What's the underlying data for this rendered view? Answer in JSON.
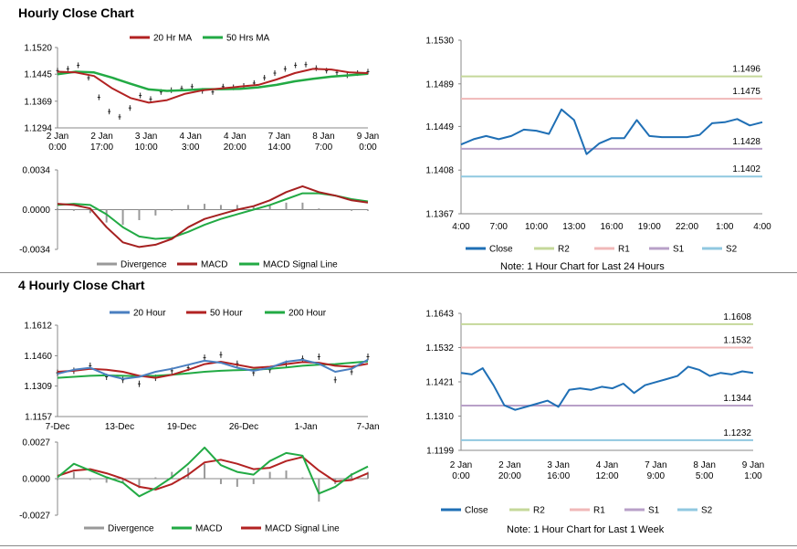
{
  "sections": {
    "hourly_title": "Hourly Close Chart",
    "four_hourly_title": "4 Hourly Close Chart"
  },
  "colors": {
    "ma20": "#b22222",
    "ma50": "#22aa44",
    "close": "#1f6fb5",
    "r2": "#c5d89a",
    "r1": "#f0b8b8",
    "s1": "#b8a0c8",
    "s2": "#90c8e0",
    "divergence": "#999999",
    "macd_hourly": "#a52020",
    "signal_hourly": "#22aa44",
    "macd_4h": "#22aa44",
    "signal_4h": "#b22222",
    "ma200": "#22aa44",
    "ma20_4h": "#4a7fc0"
  },
  "chart_data": [
    {
      "id": "hourly_price",
      "type": "line",
      "ylim": [
        1.1294,
        1.152
      ],
      "yticks": [
        "1.1520",
        "1.1445",
        "1.1369",
        "1.1294"
      ],
      "xticks": [
        [
          "2 Jan",
          "0:00"
        ],
        [
          "2 Jan",
          "17:00"
        ],
        [
          "3 Jan",
          "10:00"
        ],
        [
          "4 Jan",
          "3:00"
        ],
        [
          "4 Jan",
          "20:00"
        ],
        [
          "7 Jan",
          "14:00"
        ],
        [
          "8 Jan",
          "7:00"
        ],
        [
          "9 Jan",
          "0:00"
        ]
      ],
      "series": [
        {
          "name": "20 Hr MA",
          "values": [
            1.1452,
            1.145,
            1.144,
            1.1405,
            1.1378,
            1.1365,
            1.1372,
            1.139,
            1.14,
            1.1405,
            1.141,
            1.1415,
            1.143,
            1.1448,
            1.146,
            1.1458,
            1.145,
            1.1448
          ]
        },
        {
          "name": "50 Hrs MA",
          "values": [
            1.1445,
            1.1452,
            1.145,
            1.1435,
            1.1418,
            1.1402,
            1.1398,
            1.14,
            1.1403,
            1.1403,
            1.1404,
            1.1408,
            1.1415,
            1.1425,
            1.1432,
            1.1438,
            1.1442,
            1.1446
          ]
        }
      ],
      "candles": [
        1.1455,
        1.146,
        1.147,
        1.1435,
        1.138,
        1.134,
        1.1325,
        1.135,
        1.1385,
        1.1375,
        1.1395,
        1.14,
        1.1405,
        1.141,
        1.1398,
        1.1395,
        1.141,
        1.1408,
        1.1412,
        1.142,
        1.1435,
        1.1448,
        1.146,
        1.147,
        1.1472,
        1.1462,
        1.1455,
        1.145,
        1.1442,
        1.1448,
        1.1452
      ]
    },
    {
      "id": "hourly_macd",
      "type": "line",
      "ylim": [
        -0.0034,
        0.0034
      ],
      "yticks": [
        "0.0034",
        "0.0000",
        "-0.0034"
      ],
      "series": [
        {
          "name": "MACD",
          "values": [
            0.0005,
            0.0004,
            0.0001,
            -0.0015,
            -0.0028,
            -0.0032,
            -0.003,
            -0.0025,
            -0.0015,
            -0.0008,
            -0.0004,
            0.0,
            0.0003,
            0.0008,
            0.0015,
            0.002,
            0.0015,
            0.0012,
            0.0008,
            0.0006
          ]
        },
        {
          "name": "MACD Signal Line",
          "values": [
            0.0004,
            0.0005,
            0.0004,
            -0.0004,
            -0.0015,
            -0.0023,
            -0.0025,
            -0.0024,
            -0.0019,
            -0.0013,
            -0.0008,
            -0.0004,
            0.0,
            0.0004,
            0.0009,
            0.0014,
            0.0014,
            0.0012,
            0.0009,
            0.0007
          ]
        }
      ],
      "divergence": [
        0.0001,
        -0.0001,
        -0.0003,
        -0.0011,
        -0.0013,
        -0.0009,
        -0.0005,
        -0.0001,
        0.0004,
        0.0005,
        0.0004,
        0.0004,
        0.0003,
        0.0004,
        0.0006,
        0.0006,
        0.0001,
        0.0,
        -0.0001,
        -0.0001
      ],
      "legend": [
        "Divergence",
        "MACD",
        "MACD Signal Line"
      ]
    },
    {
      "id": "hourly_levels",
      "type": "line",
      "ylim": [
        1.1367,
        1.153
      ],
      "yticks": [
        "1.1530",
        "1.1489",
        "1.1449",
        "1.1408",
        "1.1367"
      ],
      "xticks": [
        "4:00",
        "7:00",
        "10:00",
        "13:00",
        "16:00",
        "19:00",
        "22:00",
        "1:00",
        "4:00"
      ],
      "series": [
        {
          "name": "Close",
          "values": [
            1.1432,
            1.1437,
            1.144,
            1.1437,
            1.144,
            1.1446,
            1.1445,
            1.1442,
            1.1465,
            1.1455,
            1.1423,
            1.1433,
            1.1438,
            1.1438,
            1.1455,
            1.144,
            1.1439,
            1.1439,
            1.1439,
            1.1441,
            1.1452,
            1.1453,
            1.1456,
            1.145,
            1.1453
          ]
        },
        {
          "name": "R2",
          "level": 1.1496
        },
        {
          "name": "R1",
          "level": 1.1475
        },
        {
          "name": "S1",
          "level": 1.1428
        },
        {
          "name": "S2",
          "level": 1.1402
        }
      ],
      "level_labels": [
        "1.1496",
        "1.1475",
        "1.1428",
        "1.1402"
      ],
      "note": "Note: 1 Hour Chart for Last 24 Hours"
    },
    {
      "id": "four_hourly_price",
      "type": "line",
      "ylim": [
        1.1157,
        1.1612
      ],
      "yticks": [
        "1.1612",
        "1.1460",
        "1.1309",
        "1.1157"
      ],
      "xticks": [
        "7-Dec",
        "13-Dec",
        "19-Dec",
        "26-Dec",
        "1-Jan",
        "7-Jan"
      ],
      "series": [
        {
          "name": "20 Hour",
          "values": [
            1.137,
            1.139,
            1.14,
            1.1365,
            1.1345,
            1.1355,
            1.138,
            1.1395,
            1.1415,
            1.1435,
            1.1425,
            1.14,
            1.1385,
            1.14,
            1.143,
            1.144,
            1.142,
            1.138,
            1.1395,
            1.144
          ]
        },
        {
          "name": "50 Hour",
          "values": [
            1.138,
            1.1385,
            1.1395,
            1.139,
            1.138,
            1.136,
            1.135,
            1.1365,
            1.139,
            1.1418,
            1.143,
            1.1415,
            1.14,
            1.1405,
            1.1418,
            1.1428,
            1.1425,
            1.141,
            1.1405,
            1.142
          ]
        },
        {
          "name": "200 Hour",
          "values": [
            1.135,
            1.1355,
            1.136,
            1.1362,
            1.136,
            1.1358,
            1.136,
            1.1365,
            1.1372,
            1.138,
            1.1385,
            1.1388,
            1.139,
            1.1395,
            1.1402,
            1.141,
            1.1415,
            1.1418,
            1.1425,
            1.1432
          ]
        }
      ],
      "candles": [
        1.1375,
        1.1385,
        1.141,
        1.1355,
        1.134,
        1.132,
        1.135,
        1.1385,
        1.14,
        1.145,
        1.1465,
        1.142,
        1.1375,
        1.139,
        1.142,
        1.1445,
        1.1455,
        1.134,
        1.138,
        1.1455
      ]
    },
    {
      "id": "four_hourly_macd",
      "type": "line",
      "ylim": [
        -0.0027,
        0.0027
      ],
      "yticks": [
        "0.0027",
        "0.0000",
        "-0.0027"
      ],
      "series": [
        {
          "name": "MACD",
          "values": [
            0.0001,
            0.0011,
            0.0006,
            0.0001,
            -0.0003,
            -0.0013,
            -0.0007,
            0.0001,
            0.0011,
            0.0023,
            0.001,
            0.0005,
            0.0003,
            0.0013,
            0.0019,
            0.0017,
            -0.0011,
            -0.0006,
            0.0003,
            0.0009
          ]
        },
        {
          "name": "MACD Signal Line",
          "values": [
            0.0002,
            0.0006,
            0.0007,
            0.0004,
            0.0,
            -0.0006,
            -0.0008,
            -0.0004,
            0.0003,
            0.0012,
            0.0014,
            0.0011,
            0.0007,
            0.0008,
            0.0013,
            0.0016,
            0.0006,
            -0.0002,
            -0.0001,
            0.0004
          ]
        }
      ],
      "divergence": [
        -0.0001,
        0.0005,
        -0.0001,
        -0.0003,
        -0.0003,
        -0.0007,
        0.0001,
        0.0005,
        0.0008,
        0.0011,
        -0.0004,
        -0.0006,
        -0.0004,
        0.0005,
        0.0006,
        0.0001,
        -0.0017,
        -0.0004,
        0.0004,
        0.0005
      ],
      "legend": [
        "Divergence",
        "MACD",
        "MACD Signal Line"
      ]
    },
    {
      "id": "four_hourly_levels",
      "type": "line",
      "ylim": [
        1.1199,
        1.1643
      ],
      "yticks": [
        "1.1643",
        "1.1532",
        "1.1421",
        "1.1310",
        "1.1199"
      ],
      "xticks": [
        [
          "2 Jan",
          "0:00"
        ],
        [
          "2 Jan",
          "20:00"
        ],
        [
          "3 Jan",
          "16:00"
        ],
        [
          "4 Jan",
          "12:00"
        ],
        [
          "7 Jan",
          "9:00"
        ],
        [
          "8 Jan",
          "5:00"
        ],
        [
          "9 Jan",
          "1:00"
        ]
      ],
      "series": [
        {
          "name": "Close",
          "values": [
            1.145,
            1.1445,
            1.1465,
            1.141,
            1.1345,
            1.133,
            1.134,
            1.135,
            1.136,
            1.134,
            1.1395,
            1.14,
            1.1395,
            1.1405,
            1.14,
            1.1415,
            1.1385,
            1.141,
            1.142,
            1.143,
            1.144,
            1.147,
            1.146,
            1.144,
            1.145,
            1.1445,
            1.1455,
            1.145
          ]
        },
        {
          "name": "R2",
          "level": 1.1608
        },
        {
          "name": "R1",
          "level": 1.1532
        },
        {
          "name": "S1",
          "level": 1.1344
        },
        {
          "name": "S2",
          "level": 1.1232
        }
      ],
      "level_labels": [
        "1.1608",
        "1.1532",
        "1.1344",
        "1.1232"
      ],
      "note": "Note: 1 Hour Chart for Last 1 Week"
    }
  ],
  "legends": {
    "hourly_price": [
      "20 Hr MA",
      "50 Hrs MA"
    ],
    "four_hourly_price": [
      "20 Hour",
      "50 Hour",
      "200 Hour"
    ],
    "levels": [
      "Close",
      "R2",
      "R1",
      "S1",
      "S2"
    ],
    "hourly_macd": [
      "Divergence",
      "MACD",
      "MACD Signal Line"
    ],
    "four_hourly_macd": [
      "Divergence",
      "MACD",
      "MACD Signal Line"
    ]
  }
}
